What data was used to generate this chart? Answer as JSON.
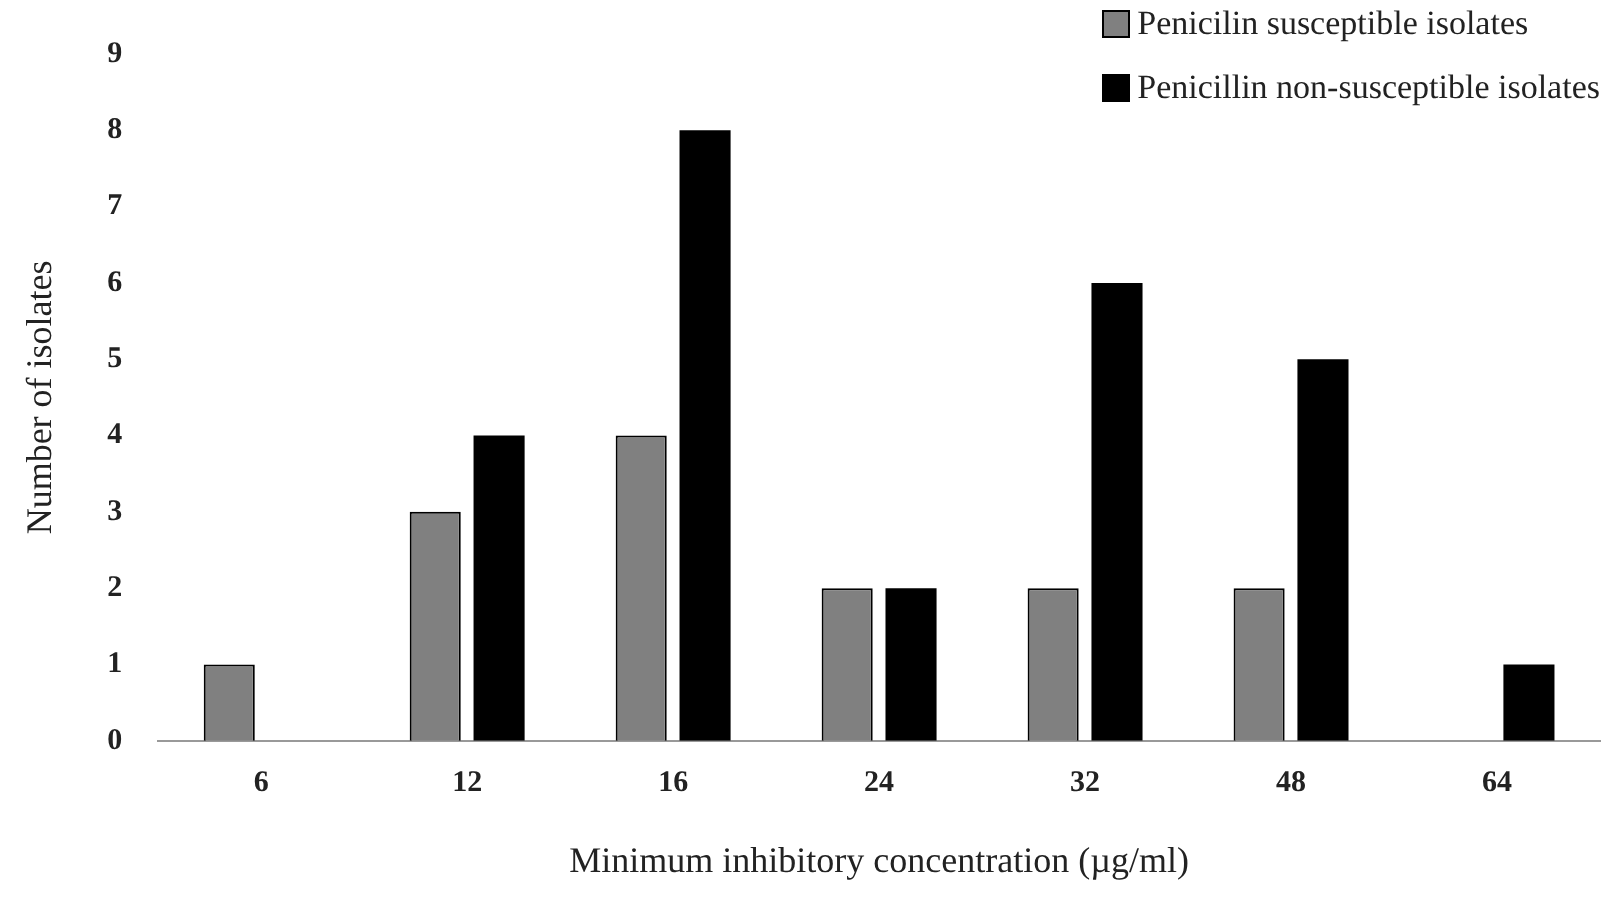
{
  "chart_data": {
    "type": "bar",
    "xlabel": "Minimum inhibitory concentration (µg/ml)",
    "ylabel": "Number of isolates",
    "categories": [
      "6",
      "12",
      "16",
      "24",
      "32",
      "48",
      "64"
    ],
    "series": [
      {
        "name": "Penicilin susceptible isolates",
        "color": "#808080",
        "values": [
          1,
          3,
          4,
          2,
          2,
          2,
          0
        ]
      },
      {
        "name": "Penicillin non-susceptible isolates",
        "color": "#000000",
        "values": [
          0,
          4,
          8,
          2,
          6,
          5,
          1
        ]
      }
    ],
    "ylim": [
      0,
      9
    ],
    "yticks": [
      0,
      1,
      2,
      3,
      4,
      5,
      6,
      7,
      8,
      9
    ],
    "grid": false,
    "legend": "top right"
  }
}
